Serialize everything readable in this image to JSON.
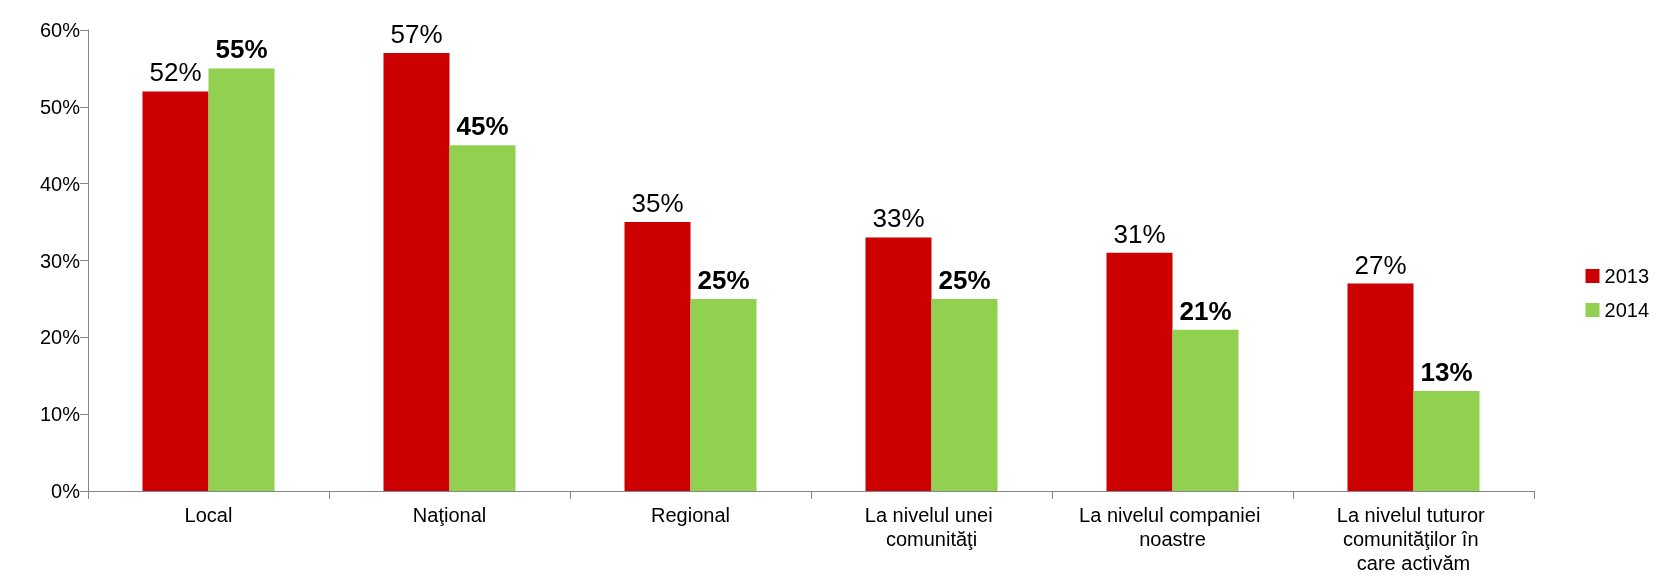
{
  "chart_data": {
    "type": "bar",
    "categories": [
      "Local",
      "Naţional",
      "Regional",
      "La nivelul unei comunităţi",
      "La nivelul companiei noastre",
      "La nivelul tuturor comunităţilor în care activăm"
    ],
    "series": [
      {
        "name": "2013",
        "color": "#cc0000",
        "values": [
          52,
          57,
          35,
          33,
          31,
          27
        ],
        "value_labels": [
          "52%",
          "57%",
          "35%",
          "33%",
          "31%",
          "27%"
        ]
      },
      {
        "name": "2014",
        "color": "#92d050",
        "values": [
          55,
          45,
          25,
          25,
          21,
          13
        ],
        "value_labels": [
          "55%",
          "45%",
          "25%",
          "25%",
          "21%",
          "13%"
        ]
      }
    ],
    "ylim": [
      0,
      60
    ],
    "yticks": [
      {
        "value": 0,
        "label": "0%"
      },
      {
        "value": 10,
        "label": "10%"
      },
      {
        "value": 20,
        "label": "20%"
      },
      {
        "value": 30,
        "label": "30%"
      },
      {
        "value": 40,
        "label": "40%"
      },
      {
        "value": 50,
        "label": "50%"
      },
      {
        "value": 60,
        "label": "60%"
      }
    ],
    "grid": false,
    "legend": "right"
  }
}
